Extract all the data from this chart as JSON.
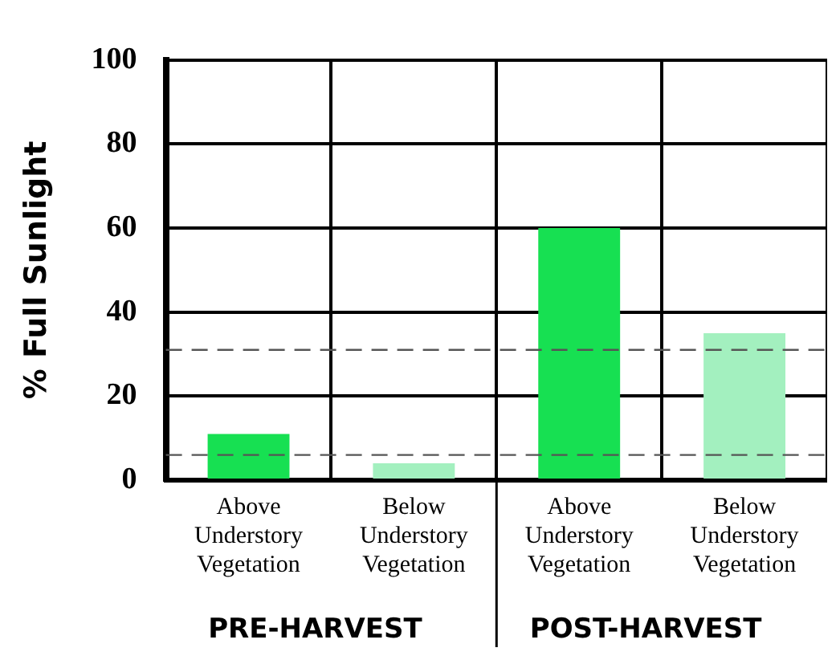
{
  "chart_data": {
    "type": "bar",
    "ylabel": "% Full Sunlight",
    "categories": [
      "Above Understory Vegetation",
      "Below Understory Vegetation",
      "Above Understory Vegetation",
      "Below Understory Vegetation"
    ],
    "values": [
      11,
      4,
      60,
      35
    ],
    "colors": [
      "#17e052",
      "#a3f0bf",
      "#17e052",
      "#a3f0bf"
    ],
    "ylim": [
      0,
      100
    ],
    "yticks": [
      0,
      20,
      40,
      60,
      80,
      100
    ],
    "grid": true,
    "legend": false,
    "ref_lines": [
      {
        "axis": "y",
        "value": 31,
        "color": "#555555",
        "line_style": "dashed"
      },
      {
        "axis": "y",
        "value": 6,
        "color": "#555555",
        "line_style": "dashed"
      }
    ],
    "annotations": [
      "PRE-HARVEST",
      "POST-HARVEST"
    ]
  }
}
